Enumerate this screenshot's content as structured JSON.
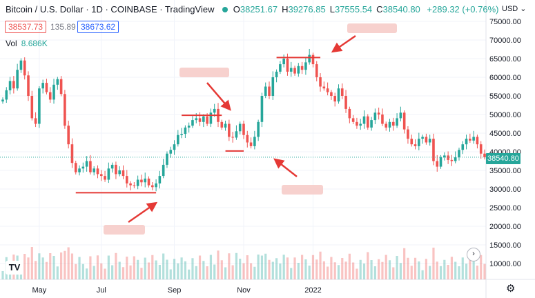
{
  "header": {
    "title": "Bitcoin / U.S. Dollar · 1D · COINBASE · TradingView",
    "ohlc": [
      {
        "label": "O",
        "value": "38251.67"
      },
      {
        "label": "H",
        "value": "39276.85"
      },
      {
        "label": "L",
        "value": "37555.54"
      },
      {
        "label": "C",
        "value": "38540.80"
      }
    ],
    "change": "+289.32 (+0.76%)"
  },
  "quotes": {
    "bid": "38537.73",
    "spread": "135.89",
    "ask": "38673.62"
  },
  "volume": {
    "label": "Vol",
    "value": "8.686K"
  },
  "currency": "USD",
  "last_price": "38540.80",
  "logo": "TV",
  "icons": {
    "settings": "gear-icon",
    "scroll": "chevron-right-icon",
    "currency_menu": "chevron-down-icon"
  },
  "colors": {
    "up": "#26a69a",
    "down": "#ef5350",
    "annotation": "#e53935"
  },
  "chart_data": {
    "type": "candlestick",
    "ylim": [
      5000,
      80000
    ],
    "y_ticks": [
      "75000.00",
      "70000.00",
      "65000.00",
      "60000.00",
      "55000.00",
      "50000.00",
      "45000.00",
      "40000.00",
      "35000.00",
      "30000.00",
      "25000.00",
      "20000.00",
      "15000.00",
      "10000.00"
    ],
    "x_ticks": [
      "May",
      "Jul",
      "Sep",
      "Nov",
      "2022"
    ],
    "close_series": [
      54000,
      56500,
      59000,
      57000,
      62000,
      64500,
      60500,
      55000,
      49000,
      47500,
      57000,
      58500,
      56000,
      54000,
      58000,
      59500,
      55500,
      47000,
      42000,
      37000,
      34500,
      35500,
      36000,
      37500,
      34500,
      35500,
      34000,
      33500,
      32500,
      35500,
      36500,
      34000,
      35000,
      33500,
      31500,
      31000,
      30800,
      32500,
      31800,
      32800,
      31000,
      30500,
      31500,
      33500,
      36500,
      39500,
      40500,
      42000,
      44500,
      44800,
      46500,
      47000,
      48500,
      49000,
      48000,
      49500,
      47500,
      50500,
      51500,
      48000,
      46500,
      47500,
      44000,
      43800,
      45500,
      47500,
      44500,
      42500,
      41500,
      44000,
      48000,
      55000,
      57500,
      55000,
      60000,
      61500,
      63500,
      65000,
      61500,
      62500,
      61000,
      63000,
      62000,
      64000,
      66000,
      63500,
      60000,
      57500,
      57000,
      56000,
      55000,
      53500,
      57000,
      55000,
      51500,
      49000,
      48000,
      47000,
      47500,
      49500,
      46500,
      48500,
      50500,
      50000,
      47500,
      46500,
      48000,
      47000,
      49000,
      50500,
      46000,
      43500,
      42000,
      41500,
      43500,
      44000,
      42500,
      43500,
      37500,
      36000,
      38500,
      39000,
      37800,
      37500,
      38500,
      40500,
      42000,
      43500,
      43000,
      44000,
      42000,
      39500,
      38541
    ],
    "annotations": [
      {
        "kind": "support",
        "x_index": [
          20,
          42
        ],
        "y": 29000
      },
      {
        "kind": "resistance",
        "x_index": [
          49,
          60
        ],
        "y": 49800
      },
      {
        "kind": "support",
        "x_index": [
          61,
          66
        ],
        "y": 40200
      },
      {
        "kind": "resistance",
        "x_index": [
          75,
          87
        ],
        "y": 65300
      }
    ]
  }
}
